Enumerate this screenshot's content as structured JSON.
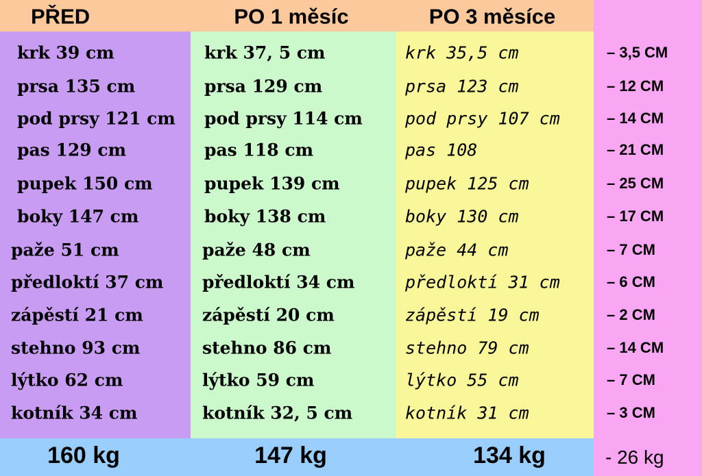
{
  "columns": [
    {
      "header": "PŘED",
      "rows": [
        "krk 39 cm",
        "prsa 135 cm",
        "pod prsy 121 cm",
        "pas 129 cm",
        "pupek 150 cm",
        "boky 147 cm",
        "paže 51 cm",
        "předloktí 37 cm",
        "zápěstí 21 cm",
        "stehno 93 cm",
        "lýtko 62 cm",
        "kotník 34 cm"
      ],
      "total": "160 kg"
    },
    {
      "header": "PO 1 měsíc",
      "rows": [
        "krk 37, 5 cm",
        "prsa 129 cm",
        "pod prsy 114 cm",
        "pas 118 cm",
        "pupek 139 cm",
        "boky 138 cm",
        "paže 48 cm",
        "předloktí 34 cm",
        "zápěstí 20 cm",
        "stehno 86 cm",
        "lýtko 59 cm",
        "kotník 32, 5 cm"
      ],
      "total": "147 kg"
    },
    {
      "header": "PO 3 měsíce",
      "rows": [
        "krk 35,5 cm",
        "prsa 123 cm",
        "pod prsy 107 cm",
        "pas 108",
        "pupek 125 cm",
        "boky 130 cm",
        "paže 44 cm",
        "předloktí 31 cm",
        "zápěstí 19 cm",
        "stehno 79 cm",
        "lýtko 55 cm",
        "kotník 31 cm"
      ],
      "total": "134 kg"
    }
  ],
  "difference": {
    "rows": [
      "– 3,5 CM",
      "– 12 CM",
      "– 14 CM",
      "– 21 CM",
      "– 25 CM",
      "– 17 CM",
      "– 7 CM",
      "– 6 CM",
      "– 2 CM",
      "– 14 CM",
      "– 7 CM",
      "– 3 CM"
    ],
    "total": "- 26 kg"
  }
}
